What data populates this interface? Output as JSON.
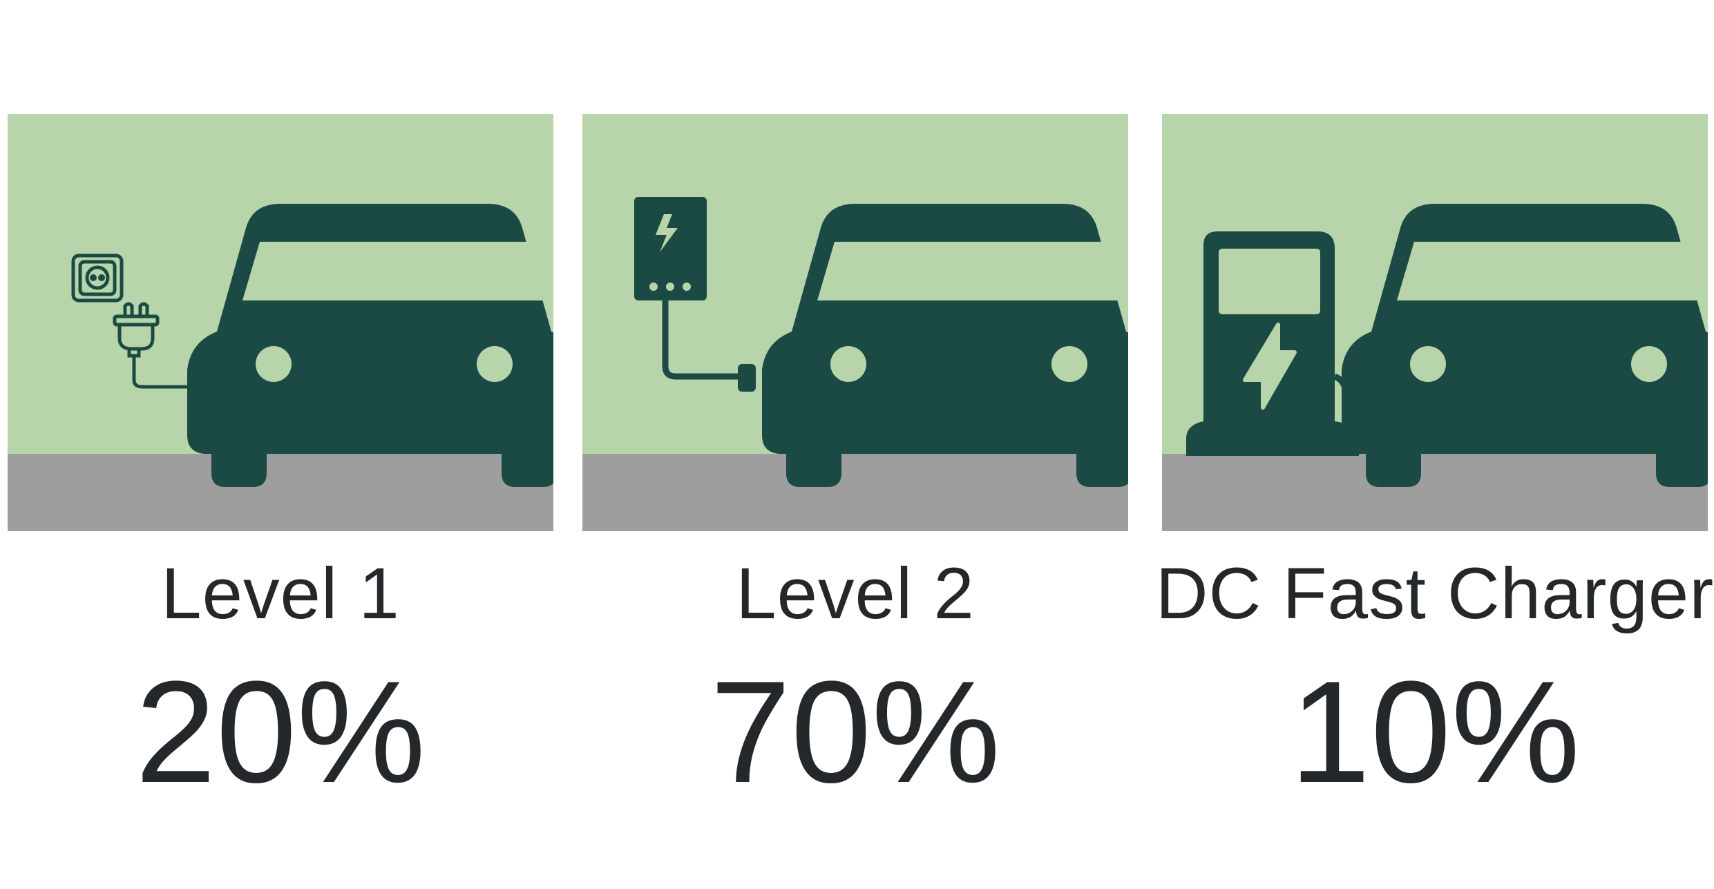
{
  "colors": {
    "sky": "#b8d4aa",
    "ground": "#9e9e9e",
    "icon": "#1b4a44",
    "text": "#25282b"
  },
  "charger_types": [
    {
      "label": "Level 1",
      "percent": "20%",
      "value": 20,
      "icon": "wall-outlet-plug-icon"
    },
    {
      "label": "Level 2",
      "percent": "70%",
      "value": 70,
      "icon": "wall-charger-box-icon"
    },
    {
      "label": "DC Fast Charger",
      "percent": "10%",
      "value": 10,
      "icon": "charging-station-icon"
    }
  ]
}
